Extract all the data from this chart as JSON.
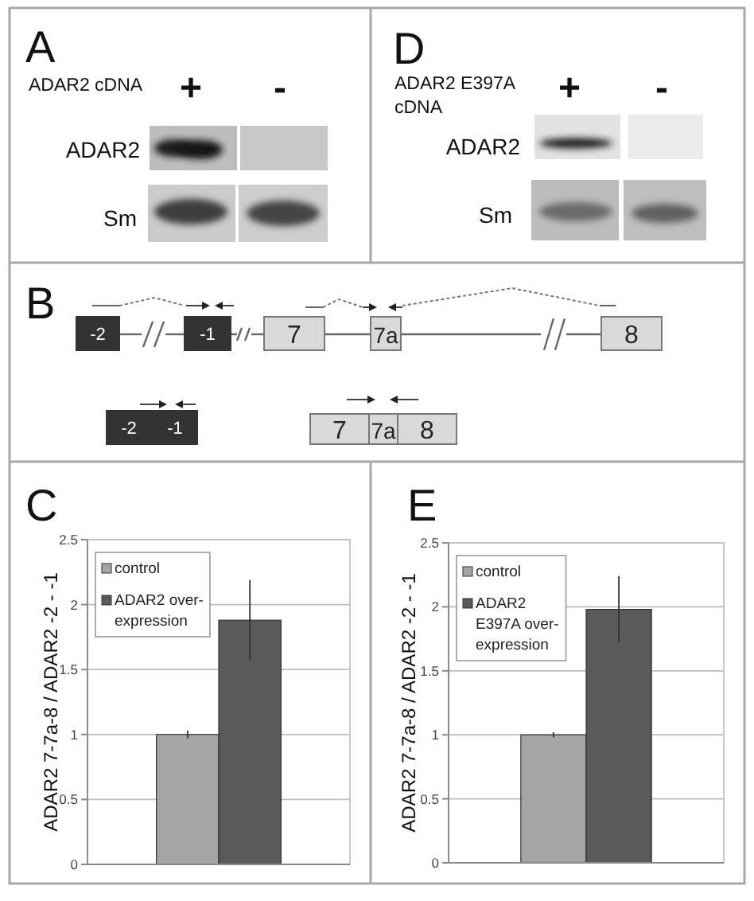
{
  "chart_data": [
    {
      "type": "other",
      "title": "A",
      "annotations": [
        "ADAR2 cDNA",
        "+",
        "-",
        "ADAR2",
        "Sm"
      ]
    },
    {
      "type": "other",
      "title": "D",
      "annotations": [
        "ADAR2 E397A\ncDNA",
        "+",
        "-",
        "ADAR2",
        "Sm"
      ]
    },
    {
      "type": "other",
      "title": "B",
      "annotations": [
        "-2",
        "-1",
        "7",
        "7a",
        "8",
        "-2",
        "-1",
        "7",
        "7a",
        "8"
      ]
    },
    {
      "type": "bar",
      "title": "C",
      "ylabel": "ADAR2 7-7a-8 / ADAR2 -2 - -1",
      "categories": [
        null
      ],
      "series": [
        {
          "name": "control",
          "color": "#a5a5a5",
          "values": [
            1
          ],
          "errors": [
            0.03
          ]
        },
        {
          "name": "ADAR2 over-\nexpression",
          "color": "#5a5a5a",
          "values": [
            1.88
          ],
          "errors": [
            0.31
          ]
        }
      ],
      "ylim": [
        0,
        2.5
      ],
      "yticks": [
        0,
        0.5,
        1,
        1.5,
        2,
        2.5
      ],
      "grid": "y",
      "legend": "top left"
    },
    {
      "type": "bar",
      "title": "E",
      "ylabel": "ADAR2 7-7a-8 / ADAR2 -2 - -1",
      "categories": [
        null
      ],
      "series": [
        {
          "name": "control",
          "color": "#a5a5a5",
          "values": [
            1
          ],
          "errors": [
            0.02
          ]
        },
        {
          "name": "ADAR2\nE397A over-\nexpression",
          "color": "#5a5a5a",
          "values": [
            1.98
          ],
          "errors": [
            0.26
          ]
        }
      ],
      "ylim": [
        0,
        2.5
      ],
      "yticks": [
        0,
        0.5,
        1,
        1.5,
        2,
        2.5
      ],
      "grid": "y",
      "legend": "top left"
    }
  ]
}
